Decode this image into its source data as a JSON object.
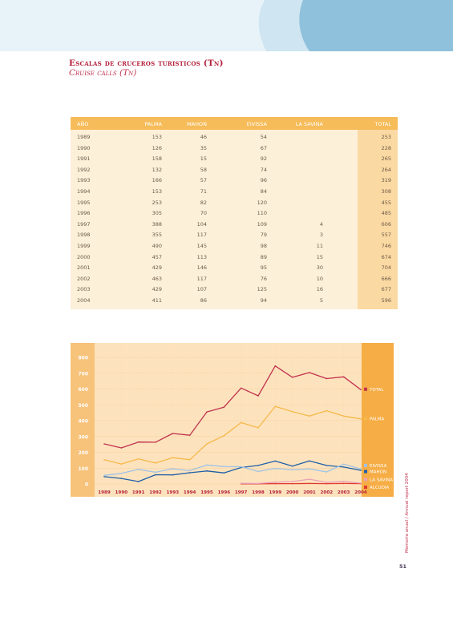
{
  "title": "Escalas de cruceros turisticos (Tn)",
  "subtitle": "Cruise calls (Tn)",
  "table": {
    "headers": [
      "AÑO",
      "PALMA",
      "MAHON",
      "EIVISSA",
      "LA SAVINA",
      "TOTAL"
    ],
    "rows": [
      [
        "1989",
        "153",
        "46",
        "54",
        "",
        "253"
      ],
      [
        "1990",
        "126",
        "35",
        "67",
        "",
        "228"
      ],
      [
        "1991",
        "158",
        "15",
        "92",
        "",
        "265"
      ],
      [
        "1992",
        "132",
        "58",
        "74",
        "",
        "264"
      ],
      [
        "1993",
        "166",
        "57",
        "96",
        "",
        "319"
      ],
      [
        "1994",
        "153",
        "71",
        "84",
        "",
        "308"
      ],
      [
        "1995",
        "253",
        "82",
        "120",
        "",
        "455"
      ],
      [
        "1996",
        "305",
        "70",
        "110",
        "",
        "485"
      ],
      [
        "1997",
        "388",
        "104",
        "109",
        "4",
        "606"
      ],
      [
        "1998",
        "355",
        "117",
        "79",
        "3",
        "557"
      ],
      [
        "1999",
        "490",
        "145",
        "98",
        "11",
        "746"
      ],
      [
        "2000",
        "457",
        "113",
        "89",
        "15",
        "674"
      ],
      [
        "2001",
        "429",
        "146",
        "95",
        "30",
        "704"
      ],
      [
        "2002",
        "463",
        "117",
        "76",
        "10",
        "666"
      ],
      [
        "2003",
        "429",
        "107",
        "125",
        "16",
        "677"
      ],
      [
        "2004",
        "411",
        "86",
        "94",
        "5",
        "596"
      ]
    ]
  },
  "chart_data": {
    "type": "line",
    "x": [
      "1989",
      "1990",
      "1991",
      "1992",
      "1993",
      "1994",
      "1995",
      "1996",
      "1997",
      "1998",
      "1999",
      "2000",
      "2001",
      "2002",
      "2003",
      "2004"
    ],
    "ylim": [
      0,
      800
    ],
    "yticks": [
      "0",
      "100",
      "200",
      "300",
      "400",
      "500",
      "600",
      "700",
      "800"
    ],
    "series": [
      {
        "name": "TOTAL",
        "color": "#c0334f",
        "values": [
          253,
          228,
          265,
          264,
          319,
          308,
          455,
          485,
          606,
          557,
          746,
          674,
          704,
          666,
          677,
          596
        ]
      },
      {
        "name": "PALMA",
        "color": "#f6b84a",
        "values": [
          153,
          126,
          158,
          132,
          166,
          153,
          253,
          305,
          388,
          355,
          490,
          457,
          429,
          463,
          429,
          411
        ]
      },
      {
        "name": "EIVISSA",
        "color": "#9fc3e6",
        "values": [
          54,
          67,
          92,
          74,
          96,
          84,
          120,
          110,
          109,
          79,
          98,
          89,
          95,
          76,
          125,
          94
        ]
      },
      {
        "name": "MAHON",
        "color": "#1f5fa8",
        "values": [
          46,
          35,
          15,
          58,
          57,
          71,
          82,
          70,
          104,
          117,
          145,
          113,
          146,
          117,
          107,
          86
        ]
      },
      {
        "name": "LA SAVINA",
        "color": "#e9a0b8",
        "values": [
          null,
          null,
          null,
          null,
          null,
          null,
          null,
          null,
          4,
          3,
          11,
          15,
          30,
          10,
          16,
          5
        ]
      },
      {
        "name": "ALCUDIA",
        "color": "#e03a2f",
        "values": [
          null,
          null,
          null,
          null,
          null,
          null,
          null,
          null,
          1,
          1,
          2,
          2,
          3,
          2,
          3,
          2
        ]
      }
    ]
  },
  "side_caption": "Memoria anual / Annual report 2004",
  "page_number": "51"
}
